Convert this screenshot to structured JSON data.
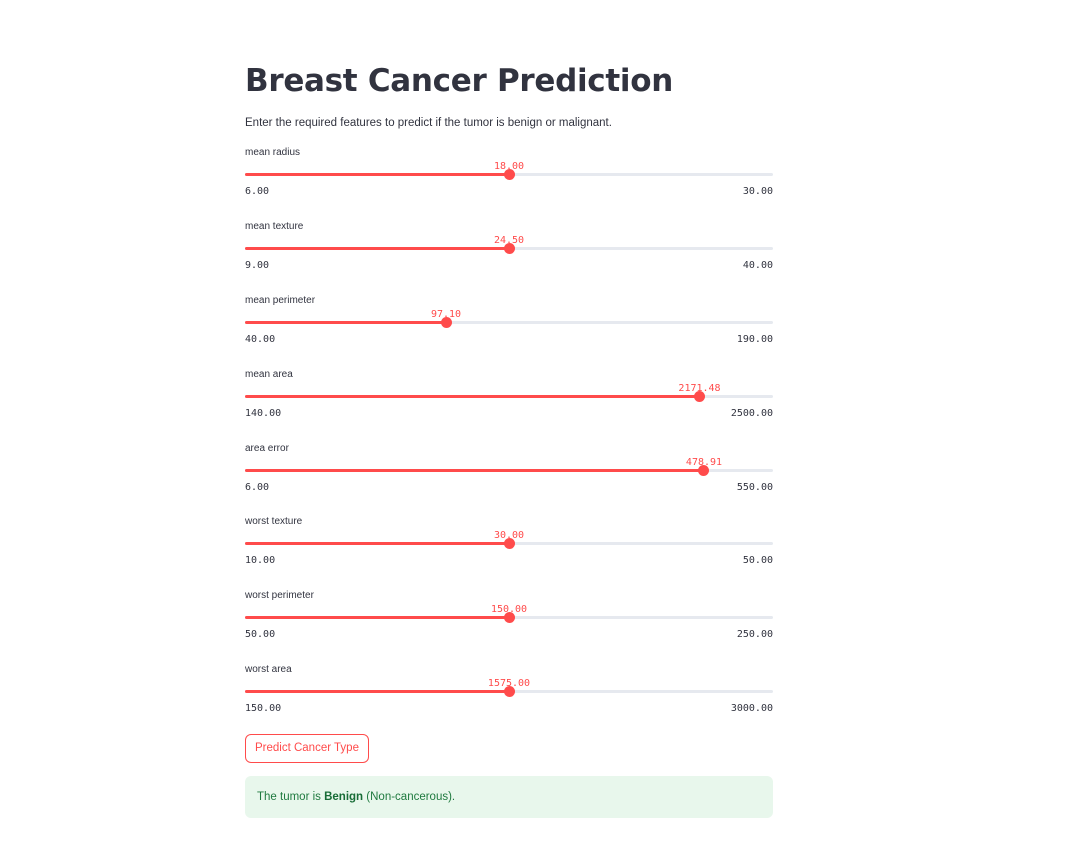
{
  "page": {
    "title": "Breast Cancer Prediction",
    "description": "Enter the required features to predict if the tumor is benign or malignant."
  },
  "sliders": [
    {
      "label": "mean radius",
      "value": "18.00",
      "min": "6.00",
      "max": "30.00",
      "fraction": 0.5
    },
    {
      "label": "mean texture",
      "value": "24.50",
      "min": "9.00",
      "max": "40.00",
      "fraction": 0.5
    },
    {
      "label": "mean perimeter",
      "value": "97.10",
      "min": "40.00",
      "max": "190.00",
      "fraction": 0.3807
    },
    {
      "label": "mean area",
      "value": "2171.48",
      "min": "140.00",
      "max": "2500.00",
      "fraction": 0.8608
    },
    {
      "label": "area error",
      "value": "478.91",
      "min": "6.00",
      "max": "550.00",
      "fraction": 0.8693
    },
    {
      "label": "worst texture",
      "value": "30.00",
      "min": "10.00",
      "max": "50.00",
      "fraction": 0.5
    },
    {
      "label": "worst perimeter",
      "value": "150.00",
      "min": "50.00",
      "max": "250.00",
      "fraction": 0.5
    },
    {
      "label": "worst area",
      "value": "1575.00",
      "min": "150.00",
      "max": "3000.00",
      "fraction": 0.5
    }
  ],
  "predict_button": {
    "label": "Predict Cancer Type"
  },
  "result": {
    "prefix": "The tumor is ",
    "diagnosis": "Benign",
    "suffix": " (Non-cancerous)."
  },
  "colors": {
    "accent": "#ff4b4b",
    "track": "#e6e9ef",
    "success_bg": "#e8f7ec",
    "success_text": "#1f7a3f",
    "text": "#31333f"
  }
}
